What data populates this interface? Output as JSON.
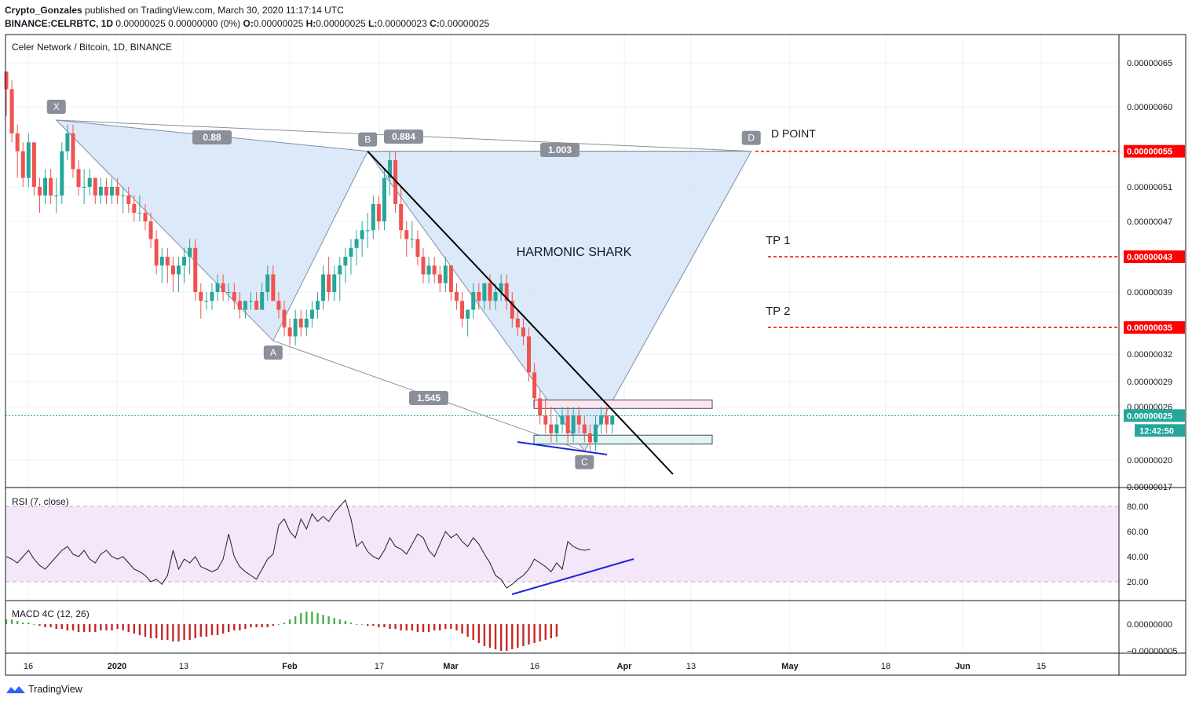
{
  "header": {
    "author": "Crypto_Gonzales",
    "published_text": "published on TradingView.com, March 30, 2020 11:17:14 UTC",
    "symbol_line_bold": "BINANCE:CELRBTC, 1D",
    "symbol_line_rest": "0.00000025 0.00000000 (0%)",
    "ohlc": [
      {
        "k": "O:",
        "v": "0.00000025"
      },
      {
        "k": "H:",
        "v": "0.00000025"
      },
      {
        "k": "L:",
        "v": "0.00000023"
      },
      {
        "k": "C:",
        "v": "0.00000025"
      }
    ]
  },
  "chart_data": {
    "type": "candlestick",
    "title": "Celer Network / Bitcoin, 1D, BINANCE",
    "price_axis": {
      "ticks": [
        "0.00000065",
        "0.00000060",
        "0.00000051",
        "0.00000047",
        "0.00000039",
        "0.00000032",
        "0.00000029",
        "0.00000026",
        "0.00000020",
        "0.00000017"
      ],
      "tick_values": [
        65,
        60,
        51,
        47,
        39,
        32,
        29,
        26,
        20,
        17
      ],
      "unit_scale": "1e-8 BTC"
    },
    "time_axis": {
      "labels": [
        "16",
        "2020",
        "13",
        "Feb",
        "17",
        "Mar",
        "16",
        "Apr",
        "13",
        "May",
        "18",
        "Jun",
        "15"
      ],
      "bold_labels": [
        "2020",
        "Feb",
        "Mar",
        "Apr",
        "May",
        "Jun"
      ]
    },
    "candles": [
      [
        64,
        64,
        59,
        62
      ],
      [
        62,
        63,
        56,
        57
      ],
      [
        57,
        58,
        52,
        55
      ],
      [
        55,
        56,
        51,
        52
      ],
      [
        52,
        57,
        51,
        56
      ],
      [
        56,
        56,
        50,
        51
      ],
      [
        51,
        52,
        48,
        50
      ],
      [
        50,
        53,
        49,
        52
      ],
      [
        52,
        53,
        49,
        50
      ],
      [
        50,
        52,
        48,
        50
      ],
      [
        50,
        56,
        49,
        55
      ],
      [
        55,
        58,
        54,
        57
      ],
      [
        57,
        58,
        52,
        53
      ],
      [
        53,
        54,
        50,
        51
      ],
      [
        51,
        53,
        49,
        51
      ],
      [
        51,
        53,
        50,
        52
      ],
      [
        52,
        52,
        49,
        50
      ],
      [
        50,
        52,
        49,
        51
      ],
      [
        51,
        52,
        49,
        50
      ],
      [
        50,
        52,
        49,
        51
      ],
      [
        51,
        52,
        49,
        50
      ],
      [
        50,
        51,
        48,
        50
      ],
      [
        50,
        51,
        48,
        49
      ],
      [
        49,
        50,
        47,
        48
      ],
      [
        48,
        50,
        47,
        48
      ],
      [
        48,
        49,
        46,
        47
      ],
      [
        47,
        48,
        44,
        45
      ],
      [
        45,
        46,
        41,
        42
      ],
      [
        42,
        44,
        40,
        43
      ],
      [
        43,
        44,
        40,
        42
      ],
      [
        42,
        43,
        39,
        41
      ],
      [
        41,
        43,
        39,
        42
      ],
      [
        42,
        44,
        40,
        43
      ],
      [
        43,
        45,
        41,
        44
      ],
      [
        44,
        45,
        38,
        39
      ],
      [
        39,
        40,
        36,
        38
      ],
      [
        38,
        39,
        37,
        38
      ],
      [
        38,
        40,
        37,
        39
      ],
      [
        39,
        41,
        38,
        40
      ],
      [
        40,
        41,
        38,
        39
      ],
      [
        39,
        40,
        38,
        39
      ],
      [
        39,
        40,
        37,
        38
      ],
      [
        38,
        39,
        36,
        37
      ],
      [
        37,
        38,
        36,
        38
      ],
      [
        38,
        39,
        37,
        38
      ],
      [
        38,
        39,
        37,
        37
      ],
      [
        37,
        40,
        37,
        39
      ],
      [
        39,
        42,
        38,
        41
      ],
      [
        41,
        42,
        38,
        38
      ],
      [
        38,
        39,
        36,
        37
      ],
      [
        37,
        38,
        34,
        35
      ],
      [
        35,
        36,
        33,
        34
      ],
      [
        34,
        37,
        33,
        36
      ],
      [
        36,
        37,
        34,
        35
      ],
      [
        35,
        37,
        34,
        36
      ],
      [
        36,
        38,
        35,
        37
      ],
      [
        37,
        39,
        36,
        38
      ],
      [
        38,
        42,
        37,
        41
      ],
      [
        41,
        43,
        38,
        39
      ],
      [
        39,
        42,
        38,
        41
      ],
      [
        41,
        43,
        38,
        42
      ],
      [
        42,
        44,
        40,
        43
      ],
      [
        43,
        45,
        41,
        44
      ],
      [
        44,
        46,
        42,
        45
      ],
      [
        45,
        47,
        43,
        46
      ],
      [
        46,
        48,
        44,
        46
      ],
      [
        46,
        50,
        45,
        49
      ],
      [
        49,
        50,
        46,
        47
      ],
      [
        47,
        53,
        46,
        52
      ],
      [
        52,
        55,
        50,
        54
      ],
      [
        54,
        55,
        48,
        49
      ],
      [
        49,
        51,
        45,
        46
      ],
      [
        46,
        47,
        43,
        45
      ],
      [
        45,
        47,
        44,
        45
      ],
      [
        45,
        46,
        42,
        43
      ],
      [
        43,
        44,
        40,
        41
      ],
      [
        41,
        43,
        40,
        42
      ],
      [
        42,
        43,
        40,
        41
      ],
      [
        41,
        42,
        39,
        40
      ],
      [
        40,
        43,
        39,
        42
      ],
      [
        42,
        42,
        38,
        39
      ],
      [
        39,
        40,
        37,
        38
      ],
      [
        38,
        39,
        35,
        36
      ],
      [
        36,
        37,
        34,
        37
      ],
      [
        37,
        40,
        36,
        39
      ],
      [
        39,
        40,
        37,
        38
      ],
      [
        38,
        40,
        37,
        40
      ],
      [
        40,
        41,
        37,
        38
      ],
      [
        38,
        40,
        37,
        39
      ],
      [
        39,
        41,
        38,
        40
      ],
      [
        40,
        41,
        37,
        38
      ],
      [
        38,
        39,
        35,
        36
      ],
      [
        36,
        37,
        34,
        35
      ],
      [
        35,
        36,
        33,
        34
      ],
      [
        34,
        35,
        29,
        30
      ],
      [
        30,
        31,
        26,
        27
      ],
      [
        27,
        28,
        24,
        25
      ],
      [
        25,
        27,
        23,
        24
      ],
      [
        24,
        26,
        22,
        23
      ],
      [
        23,
        25,
        22,
        24
      ],
      [
        24,
        26,
        23,
        25
      ],
      [
        25,
        26,
        22,
        23
      ],
      [
        23,
        26,
        22,
        25
      ],
      [
        25,
        26,
        23,
        24
      ],
      [
        24,
        25,
        22,
        23
      ],
      [
        23,
        24,
        21,
        22
      ],
      [
        22,
        25,
        21,
        24
      ],
      [
        24,
        26,
        23,
        25
      ],
      [
        25,
        26,
        23,
        24
      ],
      [
        24,
        25,
        23,
        25
      ]
    ],
    "harmonic_pattern": {
      "name": "HARMONIC SHARK",
      "points": [
        {
          "label": "X",
          "price": 58.5
        },
        {
          "label": "A",
          "price": 33.5
        },
        {
          "label": "B",
          "price": 55.0
        },
        {
          "label": "C",
          "price": 21.0
        },
        {
          "label": "D",
          "price": 55.0
        }
      ],
      "ratios": [
        "0.88",
        "0.884",
        "1.003",
        "1.545"
      ],
      "d_text": "D POINT"
    },
    "targets": [
      {
        "label": "",
        "value": "0.00000055",
        "price": 55
      },
      {
        "label": "TP 1",
        "value": "0.00000043",
        "price": 43
      },
      {
        "label": "TP 2",
        "value": "0.00000035",
        "price": 35
      }
    ],
    "current_price": "0.00000025",
    "countdown": "12:42:50",
    "rsi": {
      "title": "RSI (7, close)",
      "ticks": [
        "80.00",
        "60.00",
        "40.00",
        "20.00"
      ],
      "levels": [
        80,
        20
      ],
      "values": [
        40,
        38,
        35,
        40,
        45,
        38,
        33,
        30,
        35,
        40,
        45,
        48,
        42,
        40,
        45,
        38,
        35,
        42,
        45,
        40,
        38,
        40,
        35,
        30,
        28,
        25,
        20,
        22,
        18,
        25,
        45,
        30,
        38,
        35,
        40,
        32,
        30,
        28,
        30,
        38,
        58,
        40,
        32,
        28,
        25,
        22,
        30,
        38,
        42,
        65,
        70,
        60,
        55,
        70,
        62,
        74,
        68,
        72,
        68,
        75,
        80,
        85,
        70,
        48,
        52,
        44,
        40,
        38,
        45,
        55,
        48,
        46,
        42,
        50,
        58,
        55,
        45,
        40,
        50,
        60,
        55,
        58,
        52,
        48,
        55,
        50,
        42,
        35,
        25,
        22,
        15,
        18,
        22,
        25,
        30,
        38,
        35,
        32,
        28,
        35,
        30,
        52,
        48,
        46,
        45,
        46
      ]
    },
    "macd": {
      "title": "MACD 4C (12, 26)",
      "ticks": [
        "0.00000000",
        "−0.00000005"
      ],
      "hist": [
        3,
        3,
        2,
        1,
        1,
        0,
        -1,
        -2,
        -2,
        -3,
        -3,
        -4,
        -4,
        -5,
        -5,
        -5,
        -5,
        -4,
        -4,
        -4,
        -3,
        -4,
        -5,
        -6,
        -7,
        -8,
        -9,
        -9,
        -10,
        -10,
        -11,
        -11,
        -10,
        -10,
        -9,
        -8,
        -8,
        -7,
        -7,
        -6,
        -5,
        -4,
        -4,
        -3,
        -2,
        -2,
        -2,
        -2,
        -1,
        0,
        1,
        3,
        5,
        7,
        8,
        8,
        7,
        6,
        5,
        4,
        3,
        2,
        1,
        0,
        0,
        -1,
        -1,
        -2,
        -2,
        -3,
        -3,
        -4,
        -4,
        -4,
        -5,
        -5,
        -5,
        -4,
        -4,
        -3,
        -3,
        -4,
        -6,
        -8,
        -10,
        -12,
        -14,
        -15,
        -16,
        -17,
        -17,
        -16,
        -15,
        -14,
        -13,
        -12,
        -11,
        -10,
        -9,
        -8
      ]
    },
    "grid": true,
    "colors": {
      "up": "#26a69a",
      "down": "#ef5350",
      "pattern_fill": "#d0e2f6",
      "target_line": "#ff0000",
      "rsi_band": "#f4e6fb",
      "rsi_divergence": "#1c29d8",
      "macd_pos": "#4caf50",
      "macd_neg": "#c62828"
    }
  },
  "footer": {
    "brand": "TradingView"
  }
}
